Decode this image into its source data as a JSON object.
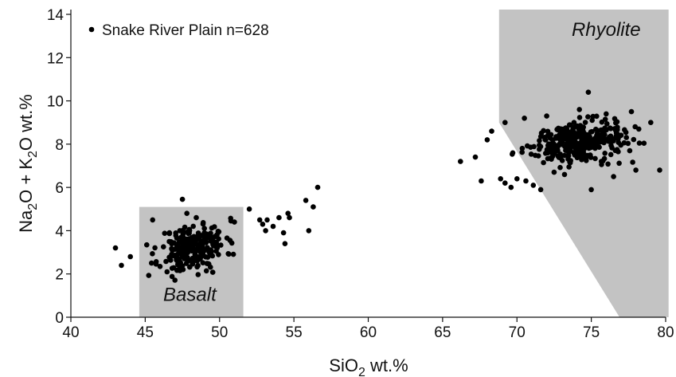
{
  "chart_data": {
    "type": "scatter",
    "title": "",
    "xlabel": {
      "main": "SiO",
      "sub": "2",
      "rest": " wt.%"
    },
    "ylabel": {
      "p1": "Na",
      "s1": "2",
      "p2": "O + K",
      "s2": "2",
      "p3": "O wt.%"
    },
    "xlim": [
      40,
      80
    ],
    "ylim": [
      0,
      14
    ],
    "xticks": [
      40,
      45,
      50,
      55,
      60,
      65,
      70,
      75,
      80
    ],
    "yticks": [
      0,
      2,
      4,
      6,
      8,
      10,
      12,
      14
    ],
    "grid": false,
    "legend": {
      "placement": "top-left",
      "label": "Snake River Plain n=628",
      "marker_color": "#000000"
    },
    "colors": {
      "points": "#000000",
      "region_fill": "#c3c3c3"
    },
    "regions": [
      {
        "label": "Basalt",
        "polygon": [
          [
            44.6,
            0
          ],
          [
            44.6,
            5.1
          ],
          [
            51.6,
            5.1
          ],
          [
            51.6,
            0
          ]
        ],
        "label_at": [
          48.0,
          0.75
        ]
      },
      {
        "label": "Rhyolite",
        "polygon": [
          [
            68.8,
            14.3
          ],
          [
            80.2,
            14.3
          ],
          [
            80.2,
            0
          ],
          [
            76.9,
            0
          ],
          [
            68.8,
            9.0
          ]
        ],
        "label_at": [
          76.0,
          13.0
        ]
      }
    ],
    "series": [
      {
        "scattered_points": [
          [
            43.0,
            3.2
          ],
          [
            43.4,
            2.4
          ],
          [
            44.0,
            2.8
          ],
          [
            47.5,
            5.45
          ],
          [
            45.5,
            4.5
          ],
          [
            47.8,
            4.8
          ],
          [
            51.0,
            4.4
          ],
          [
            52.0,
            5.0
          ],
          [
            52.7,
            4.5
          ],
          [
            52.9,
            4.3
          ],
          [
            53.1,
            4.0
          ],
          [
            53.2,
            4.5
          ],
          [
            53.6,
            4.2
          ],
          [
            54.0,
            4.6
          ],
          [
            54.4,
            3.4
          ],
          [
            54.3,
            3.9
          ],
          [
            54.6,
            4.8
          ],
          [
            54.7,
            4.6
          ],
          [
            55.8,
            5.4
          ],
          [
            56.0,
            4.0
          ],
          [
            56.3,
            5.1
          ],
          [
            56.6,
            6.0
          ],
          [
            66.2,
            7.2
          ],
          [
            67.2,
            7.4
          ],
          [
            67.6,
            6.3
          ],
          [
            68.0,
            8.2
          ],
          [
            68.3,
            8.6
          ],
          [
            68.9,
            6.4
          ],
          [
            69.2,
            6.2
          ],
          [
            69.6,
            6.0
          ],
          [
            70.0,
            6.4
          ],
          [
            70.6,
            6.3
          ],
          [
            71.1,
            6.1
          ],
          [
            71.6,
            5.9
          ],
          [
            72.5,
            6.7
          ],
          [
            73.2,
            6.6
          ],
          [
            75.0,
            5.9
          ],
          [
            74.8,
            10.4
          ],
          [
            74.2,
            9.6
          ],
          [
            76.0,
            9.4
          ],
          [
            77.7,
            9.5
          ],
          [
            79.0,
            9.0
          ],
          [
            79.6,
            6.8
          ],
          [
            76.5,
            6.5
          ],
          [
            78.0,
            6.8
          ],
          [
            69.2,
            9.0
          ],
          [
            70.5,
            9.2
          ],
          [
            72.0,
            9.3
          ]
        ],
        "clusters": [
          {
            "name": "basalt-cluster",
            "center": [
              48.2,
              3.2
            ],
            "spread": [
              2.2,
              0.55
            ],
            "slope": 0.11,
            "count": 235,
            "seed": 11
          },
          {
            "name": "rhyolite-cluster",
            "center": [
              74.0,
              8.1
            ],
            "spread": [
              3.2,
              0.45
            ],
            "slope": 0.05,
            "count": 345,
            "seed": 29
          }
        ]
      }
    ]
  }
}
